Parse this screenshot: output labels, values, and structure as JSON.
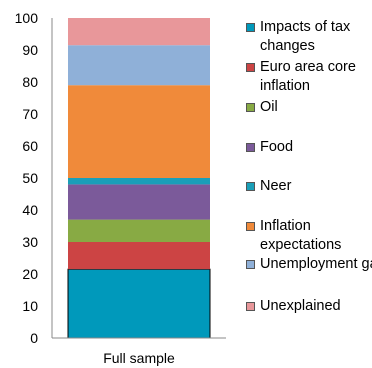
{
  "chart_data": {
    "type": "bar",
    "stacked": true,
    "categories": [
      "Full sample"
    ],
    "ylim": [
      0,
      100
    ],
    "yticks": [
      0,
      10,
      20,
      30,
      40,
      50,
      60,
      70,
      80,
      90,
      100
    ],
    "legend_position": "right",
    "series": [
      {
        "name": "Impacts of tax changes",
        "values": [
          21.5
        ],
        "color": "#0099bb"
      },
      {
        "name": "Euro area core inflation",
        "values": [
          8.5
        ],
        "color": "#cc4444"
      },
      {
        "name": "Oil",
        "values": [
          7.0
        ],
        "color": "#88aa44"
      },
      {
        "name": "Food",
        "values": [
          11.0
        ],
        "color": "#7b5a9a"
      },
      {
        "name": "Neer",
        "values": [
          2.0
        ],
        "color": "#1a9fb8"
      },
      {
        "name": "Inflation expectations",
        "values": [
          29.0
        ],
        "color": "#f08a3a"
      },
      {
        "name": "Unemployment gap",
        "values": [
          12.5
        ],
        "color": "#8fb0d8"
      },
      {
        "name": "Unexplained",
        "values": [
          8.5
        ],
        "color": "#e8979a"
      }
    ]
  }
}
